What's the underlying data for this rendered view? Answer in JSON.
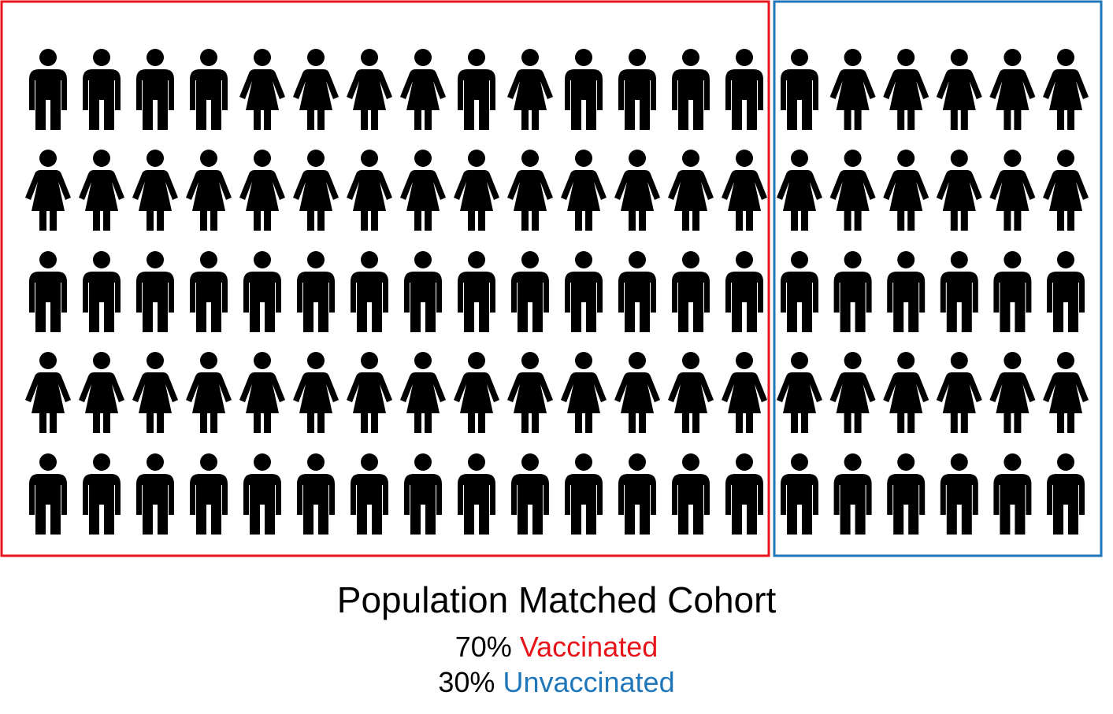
{
  "colors": {
    "vaccinated": "#e8141c",
    "unvaccinated": "#1f77b9",
    "figure": "#000000"
  },
  "groups": [
    {
      "label": "Vaccinated",
      "percent": "70%",
      "fraction": 0.7,
      "rows": [
        [
          "male",
          "male",
          "male",
          "male",
          "female",
          "female",
          "female",
          "female",
          "male",
          "female",
          "male",
          "male",
          "male",
          "male"
        ],
        [
          "female",
          "female",
          "female",
          "female",
          "female",
          "female",
          "female",
          "female",
          "female",
          "female",
          "female",
          "female",
          "female",
          "female"
        ],
        [
          "male",
          "male",
          "male",
          "male",
          "male",
          "male",
          "male",
          "male",
          "male",
          "male",
          "male",
          "male",
          "male",
          "male"
        ],
        [
          "female",
          "female",
          "female",
          "female",
          "female",
          "female",
          "female",
          "female",
          "female",
          "female",
          "female",
          "female",
          "female",
          "female"
        ],
        [
          "male",
          "male",
          "male",
          "male",
          "male",
          "male",
          "male",
          "male",
          "male",
          "male",
          "male",
          "male",
          "male",
          "male"
        ]
      ]
    },
    {
      "label": "Unvaccinated",
      "percent": "30%",
      "fraction": 0.3,
      "rows": [
        [
          "male",
          "female",
          "female",
          "female",
          "female",
          "female"
        ],
        [
          "female",
          "female",
          "female",
          "female",
          "female",
          "female"
        ],
        [
          "male",
          "male",
          "male",
          "male",
          "male",
          "male"
        ],
        [
          "female",
          "female",
          "female",
          "female",
          "female",
          "female"
        ],
        [
          "male",
          "male",
          "male",
          "male",
          "male",
          "male"
        ]
      ]
    }
  ],
  "title": "Population Matched Cohort",
  "legend": {
    "vaccinated_percent": "70%",
    "vaccinated_label": "Vaccinated",
    "unvaccinated_percent": "30%",
    "unvaccinated_label": "Unvaccinated"
  }
}
